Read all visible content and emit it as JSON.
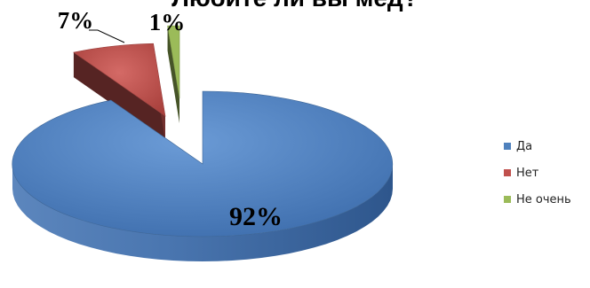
{
  "chart_data": {
    "type": "pie",
    "title": "Любите ли вы мёд?",
    "categories": [
      "Да",
      "Нет",
      "Не очень"
    ],
    "values": [
      92,
      7,
      1
    ],
    "data_labels": [
      "92%",
      "7%",
      "1%"
    ],
    "colors": [
      "#4F81BD",
      "#C0504D",
      "#9BBB59"
    ],
    "style": "3d-exploded",
    "legend_position": "right"
  }
}
